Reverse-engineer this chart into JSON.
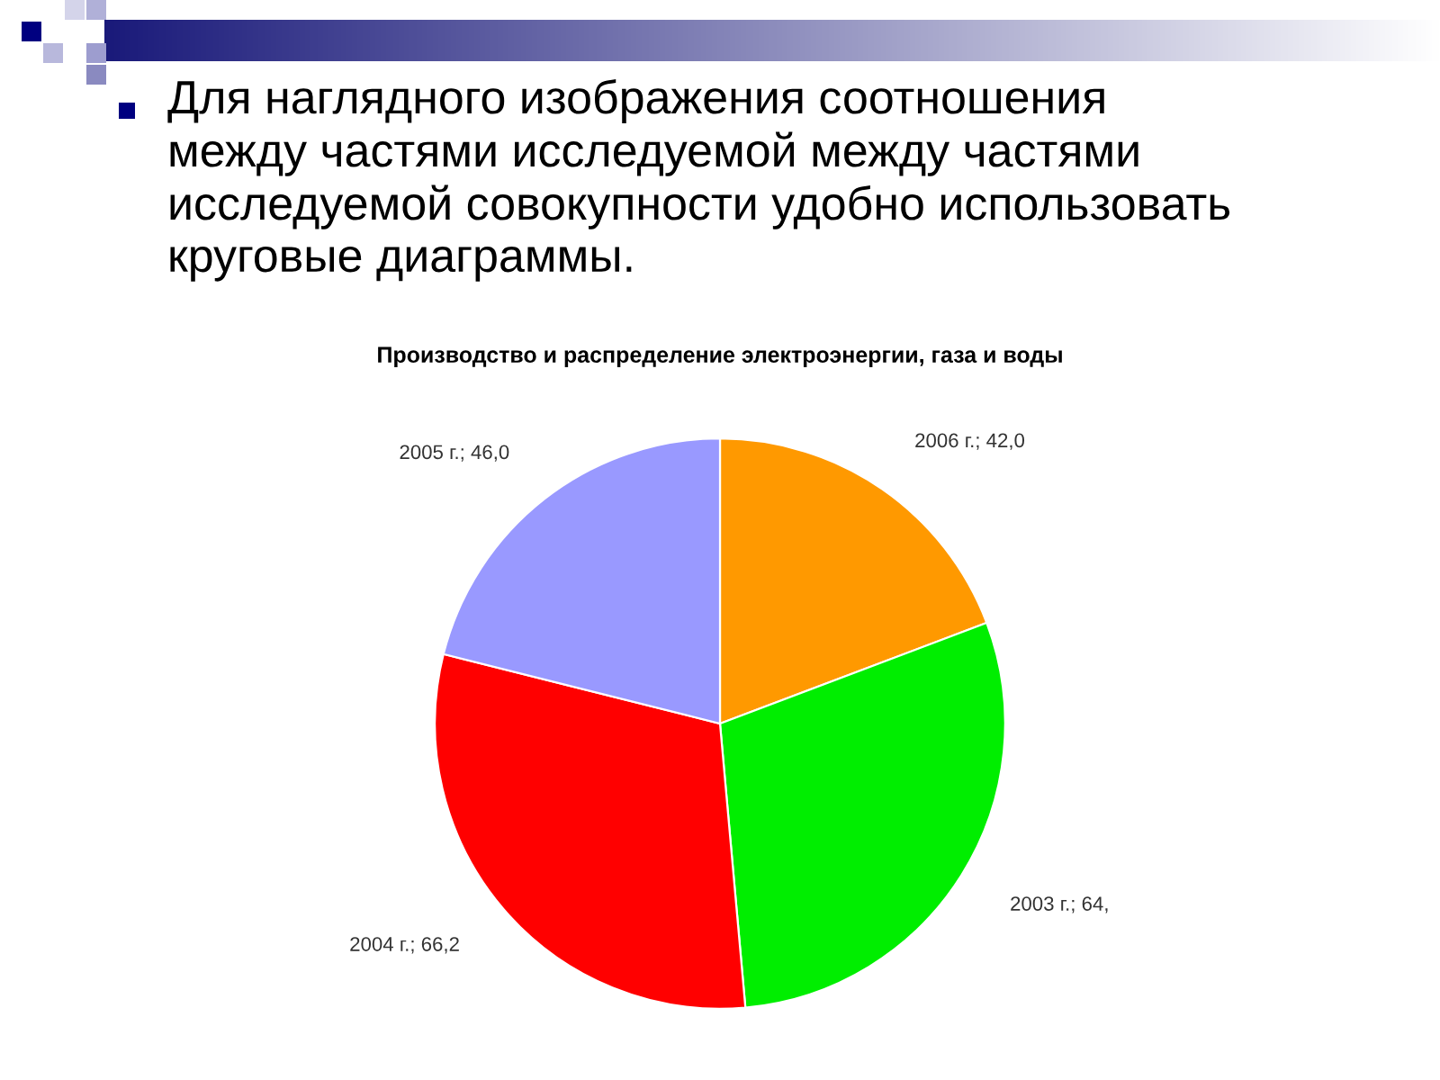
{
  "chart_data": {
    "type": "pie",
    "title": "Производство и распределение электроэнергии, газа и воды",
    "annotations": [
      "Для наглядного изображения соотношения между частями исследуемой между частями исследуемой совокупности удобно использовать круговые диаграммы."
    ],
    "categories": [
      "2006 г.",
      "2003 г.",
      "2004 г.",
      "2005 г."
    ],
    "values": [
      42.0,
      64,
      66.2,
      46.0
    ],
    "value_labels": [
      "42,0",
      "64,",
      "66,2",
      "46,0"
    ],
    "colors": [
      "#ff9900",
      "#00ee00",
      "#ff0000",
      "#9999ff"
    ],
    "legend": false
  }
}
